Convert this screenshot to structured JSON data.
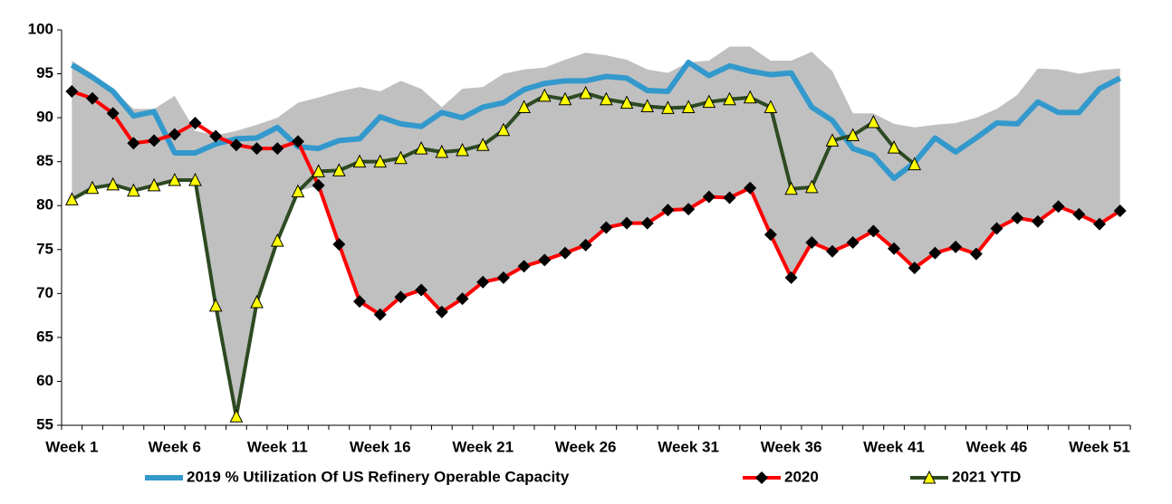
{
  "chart_data": {
    "type": "line",
    "categories": [
      "Week 1",
      null,
      null,
      null,
      null,
      "Week 6",
      null,
      null,
      null,
      null,
      "Week 11",
      null,
      null,
      null,
      null,
      "Week 16",
      null,
      null,
      null,
      null,
      "Week 21",
      null,
      null,
      null,
      null,
      "Week 26",
      null,
      null,
      null,
      null,
      "Week 31",
      null,
      null,
      null,
      null,
      "Week 36",
      null,
      null,
      null,
      null,
      "Week 41",
      null,
      null,
      null,
      null,
      "Week 46",
      null,
      null,
      null,
      null,
      "Week 51",
      null
    ],
    "band": {
      "color": "#c0c0c0",
      "high": [
        96.5,
        95,
        93.2,
        91,
        91,
        92.5,
        88.5,
        88,
        88.5,
        89.2,
        90,
        91.7,
        92.3,
        93,
        93.5,
        93,
        94.2,
        93.3,
        91.2,
        93.3,
        93.5,
        95,
        95.5,
        95.7,
        96.6,
        97.4,
        97.1,
        96.6,
        95.5,
        95.1,
        96.3,
        96.5,
        98.1,
        98.1,
        96.5,
        96.5,
        97.5,
        95.3,
        90.5,
        90.5,
        89.3,
        88.9,
        89.2,
        89.4,
        90,
        91,
        92.6,
        95.6,
        95.5,
        95,
        95.4,
        95.6
      ],
      "low": [
        80.7,
        82,
        82.4,
        81.7,
        82.3,
        82.9,
        82.9,
        68.6,
        56,
        69,
        76,
        81.6,
        82.3,
        75.6,
        69.1,
        67.6,
        69.6,
        70.4,
        67.9,
        69.4,
        71.3,
        71.8,
        73.1,
        73.8,
        74.6,
        75.5,
        77.5,
        78,
        78,
        79.5,
        79.6,
        81,
        80.9,
        82,
        76.7,
        71.8,
        75.8,
        74.8,
        75.8,
        77.1,
        75.1,
        72.9,
        74.6,
        75.3,
        74.5,
        77.4,
        78.6,
        78.2,
        79.9,
        79,
        77.9,
        79.4
      ]
    },
    "series": [
      {
        "name": "2019 % Utilization Of US Refinery Operable Capacity",
        "color": "#3399cc",
        "marker": null,
        "values": [
          96,
          94.6,
          93,
          90.2,
          90.7,
          86,
          86,
          87,
          87.6,
          87.7,
          88.9,
          86.7,
          86.5,
          87.4,
          87.6,
          90.1,
          89.3,
          89,
          90.6,
          90,
          91.2,
          91.7,
          93.2,
          93.9,
          94.2,
          94.2,
          94.7,
          94.5,
          93.1,
          93,
          96.3,
          94.8,
          95.9,
          95.3,
          94.9,
          95.1,
          91.2,
          89.7,
          86.5,
          85.7,
          83.1,
          84.9,
          87.7,
          86.1,
          87.7,
          89.4,
          89.3,
          91.8,
          90.6,
          90.6,
          93.3,
          94.5
        ]
      },
      {
        "name": "2020",
        "color": "#ff0000",
        "marker": "diamond",
        "marker_color": "#000000",
        "values": [
          93,
          92.2,
          90.5,
          87.1,
          87.4,
          88.1,
          89.4,
          87.9,
          86.9,
          86.5,
          86.5,
          87.3,
          82.3,
          75.6,
          69.1,
          67.6,
          69.6,
          70.4,
          67.9,
          69.4,
          71.3,
          71.8,
          73.1,
          73.8,
          74.6,
          75.5,
          77.5,
          78,
          78,
          79.5,
          79.6,
          81,
          80.9,
          82,
          76.7,
          71.8,
          75.8,
          74.8,
          75.8,
          77.1,
          75.1,
          72.9,
          74.6,
          75.3,
          74.5,
          77.4,
          78.6,
          78.2,
          79.9,
          79,
          77.9,
          79.4
        ]
      },
      {
        "name": "2021 YTD",
        "color": "#2d4a22",
        "marker": "triangle",
        "marker_color": "#ffff00",
        "values": [
          80.7,
          82,
          82.4,
          81.7,
          82.3,
          82.9,
          82.9,
          68.6,
          56,
          69,
          76,
          81.6,
          83.9,
          84,
          85,
          85,
          85.4,
          86.5,
          86.1,
          86.3,
          86.9,
          88.6,
          91.2,
          92.5,
          92.1,
          92.8,
          92.1,
          91.7,
          91.3,
          91.1,
          91.2,
          91.8,
          92.1,
          92.3,
          91.2,
          81.9,
          82.1,
          87.4,
          88,
          89.5,
          86.6,
          84.7,
          null,
          null,
          null,
          null,
          null,
          null,
          null,
          null,
          null,
          null
        ]
      }
    ],
    "ylim": [
      55,
      100
    ],
    "yticks": [
      55,
      60,
      65,
      70,
      75,
      80,
      85,
      90,
      95,
      100
    ],
    "grid": false,
    "legend": "bottom"
  }
}
